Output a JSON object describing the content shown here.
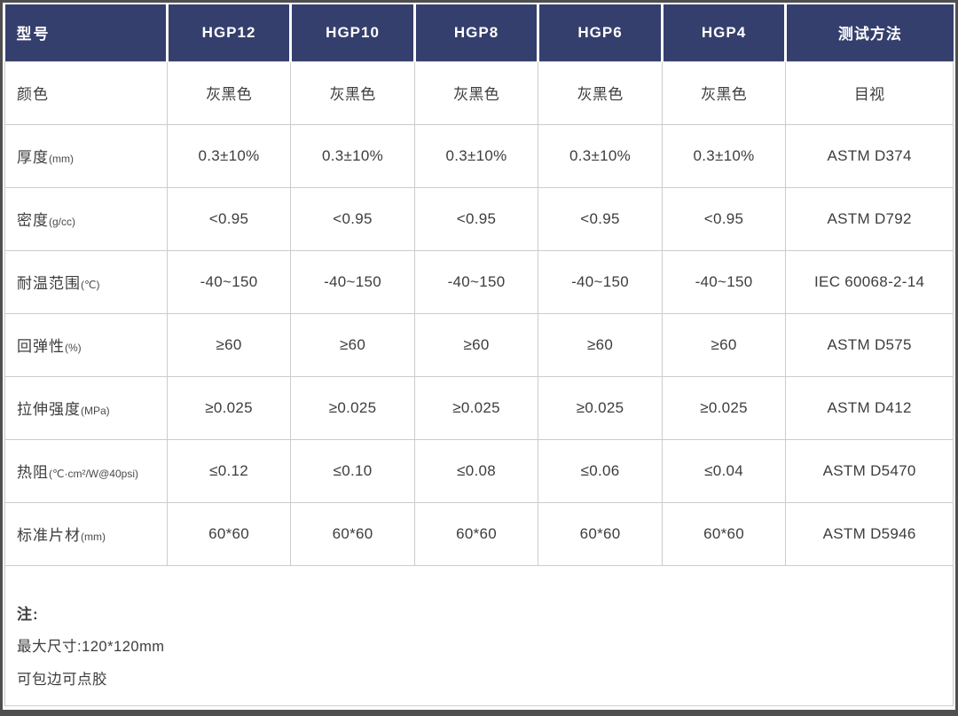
{
  "colors": {
    "header_bg": "#353F6D",
    "grid_line": "#cccccc",
    "frame": "#4f4f4f",
    "text": "#3d3d3d"
  },
  "table": {
    "header": [
      "型号",
      "HGP12",
      "HGP10",
      "HGP8",
      "HGP6",
      "HGP4",
      "测试方法"
    ],
    "rows": [
      {
        "label": "颜色",
        "unit": "",
        "values": [
          "灰黑色",
          "灰黑色",
          "灰黑色",
          "灰黑色",
          "灰黑色"
        ],
        "method": "目视"
      },
      {
        "label": "厚度",
        "unit": "(mm)",
        "values": [
          "0.3±10%",
          "0.3±10%",
          "0.3±10%",
          "0.3±10%",
          "0.3±10%"
        ],
        "method": "ASTM  D374"
      },
      {
        "label": "密度",
        "unit": "(g/cc)",
        "values": [
          "<0.95",
          "<0.95",
          "<0.95",
          "<0.95",
          "<0.95"
        ],
        "method": "ASTM D792"
      },
      {
        "label": "耐温范围",
        "unit": "(℃)",
        "values": [
          "-40~150",
          "-40~150",
          "-40~150",
          "-40~150",
          "-40~150"
        ],
        "method": "IEC 60068-2-14"
      },
      {
        "label": "回弹性",
        "unit": "(%)",
        "values": [
          "≥60",
          "≥60",
          "≥60",
          "≥60",
          "≥60"
        ],
        "method": "ASTM D575"
      },
      {
        "label": "拉伸强度",
        "unit": "(MPa)",
        "values": [
          "≥0.025",
          "≥0.025",
          "≥0.025",
          "≥0.025",
          "≥0.025"
        ],
        "method": "ASTM D412"
      },
      {
        "label": "热阻",
        "unit": "(℃·cm²/W@40psi)",
        "values": [
          "≤0.12",
          "≤0.10",
          "≤0.08",
          "≤0.06",
          "≤0.04"
        ],
        "method": "ASTM D5470"
      },
      {
        "label": "标准片材",
        "unit": "(mm)",
        "values": [
          "60*60",
          "60*60",
          "60*60",
          "60*60",
          "60*60"
        ],
        "method": "ASTM D5946"
      }
    ]
  },
  "notes": {
    "title": "注:",
    "lines": [
      "最大尺寸:120*120mm",
      "可包边可点胶"
    ]
  }
}
